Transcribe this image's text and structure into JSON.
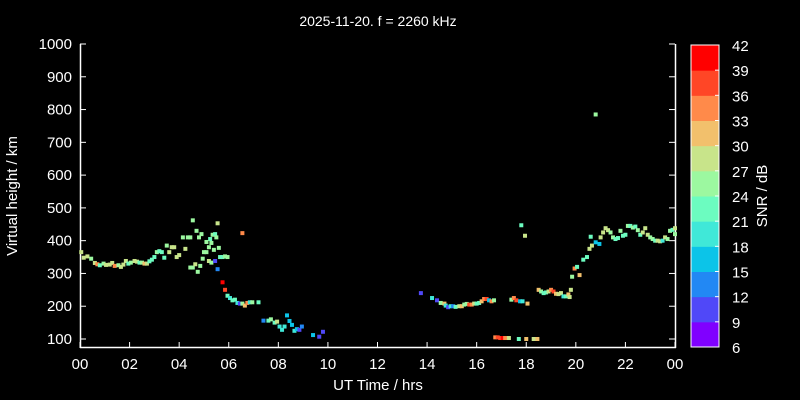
{
  "chart_data": {
    "type": "scatter",
    "title": "2025-11-20. f = 2260 kHz",
    "xlabel": "UT Time / hrs",
    "ylabel": "Virtual height / km",
    "xlim": [
      0,
      24
    ],
    "ylim": [
      100,
      1000
    ],
    "xticks": [
      "00",
      "02",
      "04",
      "06",
      "08",
      "10",
      "12",
      "14",
      "16",
      "18",
      "20",
      "22",
      "00"
    ],
    "yticks": [
      "100",
      "200",
      "300",
      "400",
      "500",
      "600",
      "700",
      "800",
      "900",
      "1000"
    ],
    "colorbar": {
      "label": "SNR / dB",
      "ticks": [
        "6",
        "9",
        "12",
        "15",
        "18",
        "21",
        "24",
        "27",
        "30",
        "33",
        "36",
        "39",
        "42"
      ],
      "colors": [
        "#8000ff",
        "#5048f8",
        "#2288f4",
        "#0cc4e8",
        "#40e8d8",
        "#6cfcc0",
        "#9cf8a0",
        "#c8e48a",
        "#f2c06c",
        "#ff8a4a",
        "#ff4626",
        "#ff0000"
      ],
      "range": [
        6,
        42
      ]
    },
    "points_format": [
      "hour",
      "height_km",
      "snr_db"
    ],
    "points": [
      [
        0.05,
        365,
        27
      ],
      [
        0.15,
        348,
        27
      ],
      [
        0.3,
        352,
        27
      ],
      [
        0.45,
        345,
        24
      ],
      [
        0.6,
        332,
        27
      ],
      [
        0.7,
        328,
        33
      ],
      [
        0.8,
        325,
        21
      ],
      [
        0.95,
        330,
        24
      ],
      [
        1.05,
        326,
        27
      ],
      [
        1.2,
        327,
        27
      ],
      [
        1.3,
        332,
        27
      ],
      [
        1.4,
        323,
        33
      ],
      [
        1.55,
        325,
        24
      ],
      [
        1.65,
        320,
        27
      ],
      [
        1.75,
        327,
        27
      ],
      [
        1.85,
        338,
        27
      ],
      [
        1.95,
        330,
        21
      ],
      [
        2.05,
        333,
        24
      ],
      [
        2.2,
        338,
        27
      ],
      [
        2.3,
        336,
        27
      ],
      [
        2.4,
        333,
        21
      ],
      [
        2.5,
        333,
        24
      ],
      [
        2.6,
        330,
        30
      ],
      [
        2.7,
        330,
        27
      ],
      [
        2.8,
        337,
        21
      ],
      [
        2.9,
        342,
        21
      ],
      [
        3.0,
        350,
        21
      ],
      [
        3.1,
        365,
        24
      ],
      [
        3.2,
        368,
        21
      ],
      [
        3.3,
        365,
        21
      ],
      [
        3.4,
        348,
        21
      ],
      [
        3.5,
        385,
        24
      ],
      [
        3.6,
        365,
        27
      ],
      [
        3.7,
        380,
        27
      ],
      [
        3.8,
        380,
        27
      ],
      [
        3.9,
        350,
        27
      ],
      [
        4.0,
        356,
        27
      ],
      [
        4.15,
        410,
        24
      ],
      [
        4.25,
        375,
        27
      ],
      [
        4.35,
        410,
        24
      ],
      [
        4.45,
        410,
        24
      ],
      [
        4.55,
        462,
        24
      ],
      [
        4.7,
        430,
        24
      ],
      [
        4.8,
        410,
        24
      ],
      [
        4.9,
        420,
        24
      ],
      [
        5.0,
        365,
        24
      ],
      [
        5.1,
        365,
        24
      ],
      [
        5.25,
        405,
        21
      ],
      [
        5.35,
        418,
        24
      ],
      [
        5.45,
        420,
        21
      ],
      [
        5.55,
        453,
        27
      ],
      [
        5.65,
        350,
        21
      ],
      [
        5.75,
        350,
        21
      ],
      [
        5.85,
        352,
        24
      ],
      [
        5.95,
        350,
        24
      ],
      [
        4.45,
        318,
        24
      ],
      [
        4.55,
        318,
        24
      ],
      [
        4.65,
        328,
        27
      ],
      [
        4.75,
        305,
        24
      ],
      [
        4.85,
        323,
        24
      ],
      [
        4.95,
        345,
        24
      ],
      [
        5.1,
        396,
        24
      ],
      [
        5.2,
        380,
        24
      ],
      [
        5.3,
        393,
        24
      ],
      [
        5.4,
        372,
        24
      ],
      [
        5.5,
        410,
        24
      ],
      [
        5.6,
        378,
        24
      ],
      [
        5.2,
        338,
        27
      ],
      [
        5.3,
        333,
        24
      ],
      [
        5.45,
        338,
        9
      ],
      [
        5.55,
        313,
        12
      ],
      [
        5.75,
        273,
        39
      ],
      [
        5.85,
        250,
        36
      ],
      [
        5.95,
        232,
        21
      ],
      [
        6.05,
        225,
        18
      ],
      [
        6.15,
        218,
        21
      ],
      [
        6.25,
        220,
        21
      ],
      [
        6.35,
        210,
        18
      ],
      [
        6.45,
        208,
        9
      ],
      [
        6.55,
        208,
        24
      ],
      [
        6.65,
        202,
        30
      ],
      [
        6.75,
        210,
        33
      ],
      [
        6.85,
        212,
        18
      ],
      [
        6.95,
        212,
        24
      ],
      [
        6.55,
        423,
        33
      ],
      [
        7.2,
        212,
        21
      ],
      [
        7.4,
        156,
        12
      ],
      [
        7.6,
        156,
        21
      ],
      [
        7.7,
        160,
        24
      ],
      [
        7.85,
        150,
        21
      ],
      [
        7.95,
        153,
        27
      ],
      [
        8.05,
        138,
        18
      ],
      [
        8.15,
        128,
        18
      ],
      [
        8.25,
        138,
        18
      ],
      [
        8.35,
        172,
        15
      ],
      [
        8.45,
        155,
        15
      ],
      [
        8.55,
        143,
        15
      ],
      [
        8.65,
        125,
        18
      ],
      [
        8.75,
        130,
        15
      ],
      [
        8.85,
        128,
        9
      ],
      [
        8.95,
        138,
        12
      ],
      [
        9.4,
        112,
        15
      ],
      [
        9.65,
        107,
        9
      ],
      [
        9.8,
        122,
        9
      ],
      [
        13.75,
        240,
        9
      ],
      [
        14.2,
        225,
        18
      ],
      [
        14.4,
        218,
        9
      ],
      [
        14.55,
        210,
        24
      ],
      [
        14.7,
        208,
        30
      ],
      [
        14.75,
        202,
        18
      ],
      [
        14.85,
        197,
        9
      ],
      [
        14.95,
        200,
        18
      ],
      [
        15.05,
        200,
        12
      ],
      [
        15.15,
        198,
        21
      ],
      [
        15.3,
        200,
        27
      ],
      [
        15.4,
        200,
        30
      ],
      [
        15.5,
        205,
        24
      ],
      [
        15.6,
        207,
        24
      ],
      [
        15.7,
        205,
        36
      ],
      [
        15.8,
        205,
        33
      ],
      [
        15.9,
        208,
        27
      ],
      [
        16.0,
        208,
        21
      ],
      [
        16.1,
        210,
        21
      ],
      [
        16.2,
        215,
        30
      ],
      [
        16.3,
        222,
        33
      ],
      [
        16.4,
        222,
        36
      ],
      [
        16.5,
        218,
        15
      ],
      [
        16.6,
        215,
        33
      ],
      [
        16.7,
        218,
        24
      ],
      [
        16.75,
        105,
        33
      ],
      [
        16.85,
        105,
        36
      ],
      [
        16.95,
        103,
        36
      ],
      [
        17.05,
        103,
        39
      ],
      [
        17.15,
        103,
        33
      ],
      [
        17.3,
        103,
        27
      ],
      [
        17.4,
        220,
        24
      ],
      [
        17.5,
        225,
        33
      ],
      [
        17.6,
        218,
        36
      ],
      [
        17.75,
        215,
        15
      ],
      [
        17.85,
        215,
        18
      ],
      [
        17.7,
        100,
        21
      ],
      [
        18.0,
        100,
        30
      ],
      [
        18.3,
        100,
        27
      ],
      [
        18.45,
        100,
        30
      ],
      [
        17.8,
        447,
        21
      ],
      [
        17.95,
        415,
        27
      ],
      [
        18.05,
        208,
        30
      ],
      [
        18.5,
        250,
        30
      ],
      [
        18.6,
        245,
        24
      ],
      [
        18.7,
        240,
        21
      ],
      [
        18.8,
        242,
        21
      ],
      [
        18.9,
        245,
        27
      ],
      [
        19.0,
        250,
        33
      ],
      [
        19.1,
        245,
        36
      ],
      [
        19.2,
        238,
        30
      ],
      [
        19.3,
        237,
        27
      ],
      [
        19.4,
        240,
        27
      ],
      [
        19.5,
        230,
        18
      ],
      [
        19.6,
        230,
        21
      ],
      [
        19.7,
        236,
        30
      ],
      [
        19.75,
        228,
        27
      ],
      [
        19.8,
        250,
        27
      ],
      [
        19.85,
        290,
        24
      ],
      [
        19.95,
        315,
        33
      ],
      [
        20.05,
        320,
        21
      ],
      [
        20.15,
        295,
        30
      ],
      [
        20.3,
        342,
        21
      ],
      [
        20.45,
        350,
        21
      ],
      [
        20.55,
        375,
        27
      ],
      [
        20.65,
        385,
        27
      ],
      [
        20.8,
        395,
        15
      ],
      [
        20.95,
        390,
        15
      ],
      [
        20.6,
        412,
        21
      ],
      [
        21.0,
        410,
        27
      ],
      [
        21.1,
        425,
        27
      ],
      [
        21.2,
        438,
        27
      ],
      [
        21.3,
        432,
        27
      ],
      [
        21.4,
        425,
        24
      ],
      [
        21.5,
        410,
        24
      ],
      [
        21.6,
        405,
        21
      ],
      [
        21.7,
        408,
        21
      ],
      [
        21.8,
        430,
        24
      ],
      [
        21.9,
        415,
        21
      ],
      [
        22.0,
        418,
        21
      ],
      [
        22.1,
        445,
        24
      ],
      [
        22.2,
        445,
        21
      ],
      [
        22.3,
        440,
        24
      ],
      [
        22.4,
        443,
        21
      ],
      [
        22.5,
        432,
        24
      ],
      [
        22.6,
        418,
        21
      ],
      [
        22.7,
        425,
        27
      ],
      [
        22.8,
        438,
        27
      ],
      [
        22.9,
        418,
        27
      ],
      [
        23.0,
        410,
        24
      ],
      [
        23.1,
        405,
        24
      ],
      [
        23.2,
        400,
        21
      ],
      [
        23.3,
        400,
        27
      ],
      [
        23.4,
        398,
        27
      ],
      [
        23.5,
        400,
        18
      ],
      [
        23.6,
        410,
        27
      ],
      [
        23.7,
        405,
        24
      ],
      [
        23.8,
        430,
        24
      ],
      [
        23.9,
        433,
        21
      ],
      [
        24.0,
        420,
        24
      ],
      [
        24.0,
        438,
        27
      ],
      [
        20.8,
        785,
        24
      ]
    ]
  }
}
